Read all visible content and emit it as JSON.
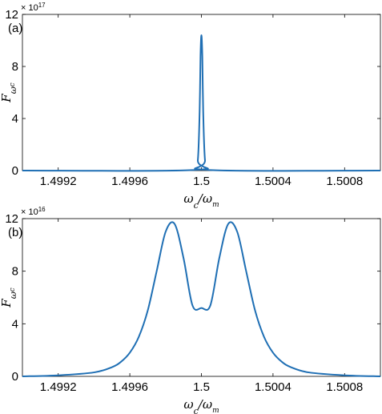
{
  "chart_data": [
    {
      "panel_label": "(a)",
      "type": "line",
      "xlabel": "ω_c/ω_m",
      "ylabel": "F_ω_c",
      "y_exponent": "× 10^17",
      "xlim": [
        1.499,
        1.501
      ],
      "ylim": [
        0,
        12
      ],
      "xticks": [
        1.4992,
        1.4996,
        1.5,
        1.5004,
        1.5008
      ],
      "xtick_labels": [
        "1.4992",
        "1.4996",
        "1.5",
        "1.5004",
        "1.5008"
      ],
      "yticks": [
        0,
        4,
        8,
        12
      ],
      "ytick_labels": [
        "0",
        "4",
        "8",
        "12"
      ],
      "grid": false,
      "legend": "none",
      "color": "#1f6fb4",
      "series": [
        {
          "x": [
            1.499,
            1.49996,
            1.49998,
            1.49999,
            1.499995,
            1.5,
            1.500005,
            1.50001,
            1.50002,
            1.50004,
            1.501
          ],
          "values": [
            0,
            0.05,
            0.8,
            4.5,
            8.8,
            10.4,
            8.8,
            4.5,
            0.8,
            0.05,
            0
          ]
        }
      ]
    },
    {
      "panel_label": "(b)",
      "type": "line",
      "xlabel": "ω_c/ω_m",
      "ylabel": "F_ω_c",
      "y_exponent": "× 10^16",
      "xlim": [
        1.499,
        1.501
      ],
      "ylim": [
        0,
        12
      ],
      "xticks": [
        1.4992,
        1.4996,
        1.5,
        1.5004,
        1.5008
      ],
      "xtick_labels": [
        "1.4992",
        "1.4996",
        "1.5",
        "1.5004",
        "1.5008"
      ],
      "yticks": [
        0,
        4,
        8,
        12
      ],
      "ytick_labels": [
        "0",
        "4",
        "8",
        "12"
      ],
      "grid": false,
      "legend": "none",
      "color": "#1f6fb4",
      "series": [
        {
          "x": [
            1.499,
            1.4992,
            1.4994,
            1.4995,
            1.49955,
            1.4996,
            1.49965,
            1.4997,
            1.49975,
            1.4998,
            1.49985,
            1.4999,
            1.49995,
            1.5,
            1.50005,
            1.5001,
            1.50015,
            1.5002,
            1.50025,
            1.5003,
            1.50035,
            1.5004,
            1.50045,
            1.5005,
            1.5006,
            1.5008,
            1.501
          ],
          "values": [
            0,
            0.08,
            0.3,
            0.7,
            1.1,
            1.8,
            3.0,
            5.0,
            8.0,
            11.0,
            11.6,
            9.0,
            5.4,
            5.2,
            5.4,
            9.0,
            11.6,
            11.0,
            8.0,
            5.0,
            3.0,
            1.8,
            1.1,
            0.7,
            0.3,
            0.08,
            0
          ]
        }
      ]
    }
  ]
}
